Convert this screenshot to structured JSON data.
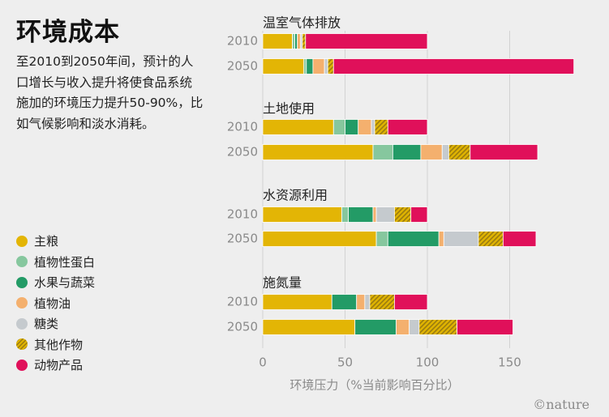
{
  "title": "环境成本",
  "description": "至2010到2050年间，预计的人口增长与收入提升将使食品系统施加的环境压力提升50-90%，比如气候影响和淡水消耗。",
  "logo": "©nature",
  "colors": {
    "主粮": "#e3b505",
    "植物性蛋白": "#86c79e",
    "水果与蔬菜": "#239b66",
    "植物油": "#f4b06e",
    "糖类": "#c5cace",
    "其他作物": "#c99d10",
    "动物产品": "#e0105a"
  },
  "chart_data": {
    "type": "bar",
    "orientation": "horizontal",
    "stacked": true,
    "xlabel": "环境压力（%当前影响百分比）",
    "xlim": [
      0,
      190
    ],
    "xticks": [
      0,
      50,
      100,
      150
    ],
    "legend_position": "left",
    "categories": [
      "主粮",
      "植物性蛋白",
      "水果与蔬菜",
      "植物油",
      "糖类",
      "其他作物",
      "动物产品"
    ],
    "panels": [
      {
        "name": "温室气体排放",
        "rows": [
          {
            "year": "2010",
            "values": [
              18,
              1.5,
              1.5,
              2,
              1,
              2,
              74
            ]
          },
          {
            "year": "2050",
            "values": [
              25,
              1.5,
              4,
              7,
              2,
              3.5,
              146
            ]
          }
        ]
      },
      {
        "name": "土地使用",
        "rows": [
          {
            "year": "2010",
            "values": [
              43,
              7,
              8,
              8,
              2,
              8,
              24
            ]
          },
          {
            "year": "2050",
            "values": [
              67,
              12,
              17,
              13,
              4,
              13,
              41
            ]
          }
        ]
      },
      {
        "name": "水资源利用",
        "rows": [
          {
            "year": "2010",
            "values": [
              48,
              4,
              15,
              2,
              11,
              10,
              10
            ]
          },
          {
            "year": "2050",
            "values": [
              69,
              7,
              31,
              3,
              21,
              15,
              20
            ]
          }
        ]
      },
      {
        "name": "施氮量",
        "rows": [
          {
            "year": "2010",
            "values": [
              42,
              0,
              15,
              5,
              3,
              15,
              20
            ]
          },
          {
            "year": "2050",
            "values": [
              56,
              0,
              25,
              8,
              6,
              23,
              34
            ]
          }
        ]
      }
    ]
  }
}
